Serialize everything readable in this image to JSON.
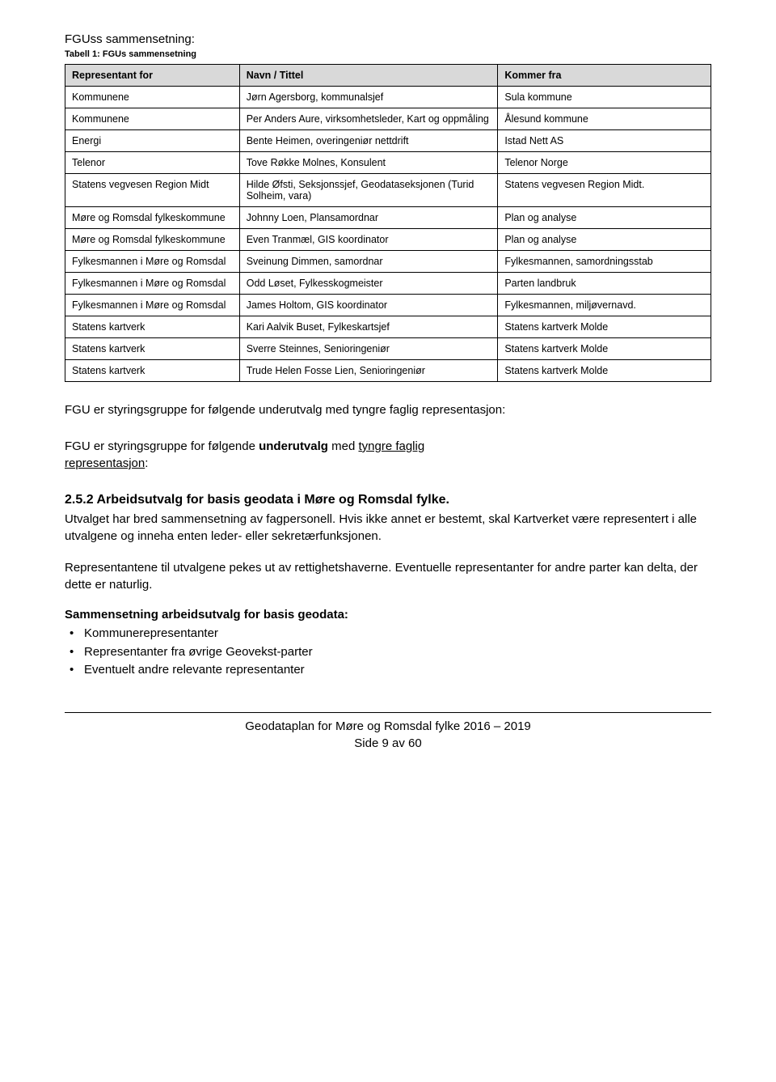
{
  "fguss_title": "FGUss sammensetning:",
  "table_caption": "Tabell 1: FGUs sammensetning",
  "table": {
    "columns": [
      "Representant for",
      "Navn / Tittel",
      "Kommer fra"
    ],
    "col_widths": [
      "27%",
      "40%",
      "33%"
    ],
    "header_bg": "#d9d9d9",
    "rows": [
      [
        "Kommunene",
        "Jørn Agersborg, kommunalsjef",
        "Sula kommune"
      ],
      [
        "Kommunene",
        "Per Anders Aure, virksomhetsleder, Kart og oppmåling",
        "Ålesund kommune"
      ],
      [
        "Energi",
        "Bente Heimen, overingeniør nettdrift",
        "Istad Nett AS"
      ],
      [
        "Telenor",
        "Tove Røkke Molnes, Konsulent",
        "Telenor Norge"
      ],
      [
        "Statens vegvesen Region Midt",
        "Hilde Øfsti, Seksjonssjef, Geodataseksjonen (Turid Solheim, vara)",
        "Statens vegvesen Region Midt."
      ],
      [
        "Møre og Romsdal fylkeskommune",
        "Johnny Loen, Plansamordnar",
        "Plan og analyse"
      ],
      [
        "Møre og Romsdal fylkeskommune",
        "Even Tranmæl, GIS koordinator",
        "Plan og analyse"
      ],
      [
        "Fylkesmannen i Møre og Romsdal",
        "Sveinung Dimmen, samordnar",
        " Fylkesmannen, samordningsstab"
      ],
      [
        "Fylkesmannen i Møre og Romsdal",
        "Odd Løset, Fylkesskogmeister",
        "Parten landbruk"
      ],
      [
        "Fylkesmannen i Møre og Romsdal",
        "James Holtom, GIS koordinator",
        "Fylkesmannen, miljøvernavd."
      ],
      [
        "Statens kartverk",
        "Kari Aalvik Buset, Fylkeskartsjef",
        "Statens kartverk Molde"
      ],
      [
        "Statens kartverk",
        "Sverre Steinnes, Senioringeniør",
        "Statens kartverk Molde"
      ],
      [
        "Statens kartverk",
        "Trude Helen Fosse Lien, Senioringeniør",
        "Statens kartverk Molde"
      ]
    ]
  },
  "para1": "FGU er styringsgruppe for følgende underutvalg med tyngre faglig representasjon:",
  "para2_prefix": "FGU er styringsgruppe for følgende ",
  "para2_bold": "underutvalg",
  "para2_mid": " med ",
  "para2_under1": "tyngre faglig",
  "para2_under2": "representasjon",
  "para2_suffix": ":",
  "section_heading": "2.5.2  Arbeidsutvalg for basis geodata i Møre og Romsdal fylke.",
  "body1": "Utvalget har bred sammensetning av fagpersonell. Hvis ikke annet er bestemt, skal Kartverket være representert i alle utvalgene og inneha enten leder- eller sekretærfunksjonen.",
  "body2": "Representantene til utvalgene pekes ut av rettighetshaverne. Eventuelle representanter for andre parter kan delta, der dette er naturlig.",
  "bold_line": "Sammensetning arbeidsutvalg for basis geodata:",
  "bullets": [
    "Kommunerepresentanter",
    "Representanter fra øvrige Geovekst-parter",
    "Eventuelt andre relevante representanter"
  ],
  "footer_line1": "Geodataplan for Møre og Romsdal fylke 2016 – 2019",
  "footer_line2": "Side 9 av 60"
}
